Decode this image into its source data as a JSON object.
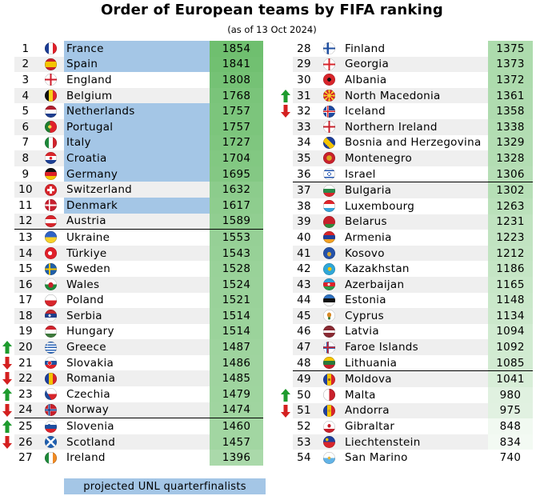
{
  "chart_data": {
    "type": "table",
    "title": "Order of European teams by FIFA ranking",
    "subtitle": "(as of 13 Oct 2024)",
    "legend": "projected UNL quarterfinalists",
    "colors": {
      "qf_highlight": "#a4c6e6",
      "points_max": "#6fbf6f",
      "points_min": "#ffffff",
      "arrow_up": "#1e9b2e",
      "arrow_down": "#d42020"
    },
    "points_scale": [
      740,
      1854
    ],
    "separators_after_rank": [
      12,
      24,
      36,
      48
    ],
    "teams": [
      {
        "rank": 1,
        "team": "France",
        "points": 1854,
        "qf": true,
        "move": "",
        "flag": "france-flag-icon"
      },
      {
        "rank": 2,
        "team": "Spain",
        "points": 1841,
        "qf": true,
        "move": "",
        "flag": "spain-flag-icon"
      },
      {
        "rank": 3,
        "team": "England",
        "points": 1808,
        "qf": false,
        "move": "",
        "flag": "england-flag-icon"
      },
      {
        "rank": 4,
        "team": "Belgium",
        "points": 1768,
        "qf": false,
        "move": "",
        "flag": "belgium-flag-icon"
      },
      {
        "rank": 5,
        "team": "Netherlands",
        "points": 1757,
        "qf": true,
        "move": "",
        "flag": "netherlands-flag-icon"
      },
      {
        "rank": 6,
        "team": "Portugal",
        "points": 1757,
        "qf": true,
        "move": "",
        "flag": "portugal-flag-icon"
      },
      {
        "rank": 7,
        "team": "Italy",
        "points": 1727,
        "qf": true,
        "move": "",
        "flag": "italy-flag-icon"
      },
      {
        "rank": 8,
        "team": "Croatia",
        "points": 1704,
        "qf": true,
        "move": "",
        "flag": "croatia-flag-icon"
      },
      {
        "rank": 9,
        "team": "Germany",
        "points": 1695,
        "qf": true,
        "move": "",
        "flag": "germany-flag-icon"
      },
      {
        "rank": 10,
        "team": "Switzerland",
        "points": 1632,
        "qf": false,
        "move": "",
        "flag": "switzerland-flag-icon"
      },
      {
        "rank": 11,
        "team": "Denmark",
        "points": 1617,
        "qf": true,
        "move": "",
        "flag": "denmark-flag-icon"
      },
      {
        "rank": 12,
        "team": "Austria",
        "points": 1589,
        "qf": false,
        "move": "",
        "flag": "austria-flag-icon"
      },
      {
        "rank": 13,
        "team": "Ukraine",
        "points": 1553,
        "qf": false,
        "move": "",
        "flag": "ukraine-flag-icon"
      },
      {
        "rank": 14,
        "team": "Türkiye",
        "points": 1543,
        "qf": false,
        "move": "",
        "flag": "turkiye-flag-icon"
      },
      {
        "rank": 15,
        "team": "Sweden",
        "points": 1528,
        "qf": false,
        "move": "",
        "flag": "sweden-flag-icon"
      },
      {
        "rank": 16,
        "team": "Wales",
        "points": 1524,
        "qf": false,
        "move": "",
        "flag": "wales-flag-icon"
      },
      {
        "rank": 17,
        "team": "Poland",
        "points": 1521,
        "qf": false,
        "move": "",
        "flag": "poland-flag-icon"
      },
      {
        "rank": 18,
        "team": "Serbia",
        "points": 1514,
        "qf": false,
        "move": "",
        "flag": "serbia-flag-icon"
      },
      {
        "rank": 19,
        "team": "Hungary",
        "points": 1514,
        "qf": false,
        "move": "",
        "flag": "hungary-flag-icon"
      },
      {
        "rank": 20,
        "team": "Greece",
        "points": 1487,
        "qf": false,
        "move": "up",
        "flag": "greece-flag-icon"
      },
      {
        "rank": 21,
        "team": "Slovakia",
        "points": 1486,
        "qf": false,
        "move": "down",
        "flag": "slovakia-flag-icon"
      },
      {
        "rank": 22,
        "team": "Romania",
        "points": 1485,
        "qf": false,
        "move": "down",
        "flag": "romania-flag-icon"
      },
      {
        "rank": 23,
        "team": "Czechia",
        "points": 1479,
        "qf": false,
        "move": "up",
        "flag": "czechia-flag-icon"
      },
      {
        "rank": 24,
        "team": "Norway",
        "points": 1474,
        "qf": false,
        "move": "down",
        "flag": "norway-flag-icon"
      },
      {
        "rank": 25,
        "team": "Slovenia",
        "points": 1460,
        "qf": false,
        "move": "up",
        "flag": "slovenia-flag-icon"
      },
      {
        "rank": 26,
        "team": "Scotland",
        "points": 1457,
        "qf": false,
        "move": "down",
        "flag": "scotland-flag-icon"
      },
      {
        "rank": 27,
        "team": "Ireland",
        "points": 1396,
        "qf": false,
        "move": "",
        "flag": "ireland-flag-icon"
      },
      {
        "rank": 28,
        "team": "Finland",
        "points": 1375,
        "qf": false,
        "move": "",
        "flag": "finland-flag-icon"
      },
      {
        "rank": 29,
        "team": "Georgia",
        "points": 1373,
        "qf": false,
        "move": "",
        "flag": "georgia-flag-icon"
      },
      {
        "rank": 30,
        "team": "Albania",
        "points": 1372,
        "qf": false,
        "move": "",
        "flag": "albania-flag-icon"
      },
      {
        "rank": 31,
        "team": "North Macedonia",
        "points": 1361,
        "qf": false,
        "move": "up",
        "flag": "north-macedonia-flag-icon"
      },
      {
        "rank": 32,
        "team": "Iceland",
        "points": 1358,
        "qf": false,
        "move": "down",
        "flag": "iceland-flag-icon"
      },
      {
        "rank": 33,
        "team": "Northern Ireland",
        "points": 1338,
        "qf": false,
        "move": "",
        "flag": "northern-ireland-flag-icon"
      },
      {
        "rank": 34,
        "team": "Bosnia and Herzegovina",
        "points": 1329,
        "qf": false,
        "move": "",
        "flag": "bosnia-flag-icon"
      },
      {
        "rank": 35,
        "team": "Montenegro",
        "points": 1328,
        "qf": false,
        "move": "",
        "flag": "montenegro-flag-icon"
      },
      {
        "rank": 36,
        "team": "Israel",
        "points": 1306,
        "qf": false,
        "move": "",
        "flag": "israel-flag-icon"
      },
      {
        "rank": 37,
        "team": "Bulgaria",
        "points": 1302,
        "qf": false,
        "move": "",
        "flag": "bulgaria-flag-icon"
      },
      {
        "rank": 38,
        "team": "Luxembourg",
        "points": 1263,
        "qf": false,
        "move": "",
        "flag": "luxembourg-flag-icon"
      },
      {
        "rank": 39,
        "team": "Belarus",
        "points": 1231,
        "qf": false,
        "move": "",
        "flag": "belarus-flag-icon"
      },
      {
        "rank": 40,
        "team": "Armenia",
        "points": 1223,
        "qf": false,
        "move": "",
        "flag": "armenia-flag-icon"
      },
      {
        "rank": 41,
        "team": "Kosovo",
        "points": 1212,
        "qf": false,
        "move": "",
        "flag": "kosovo-flag-icon"
      },
      {
        "rank": 42,
        "team": "Kazakhstan",
        "points": 1186,
        "qf": false,
        "move": "",
        "flag": "kazakhstan-flag-icon"
      },
      {
        "rank": 43,
        "team": "Azerbaijan",
        "points": 1165,
        "qf": false,
        "move": "",
        "flag": "azerbaijan-flag-icon"
      },
      {
        "rank": 44,
        "team": "Estonia",
        "points": 1148,
        "qf": false,
        "move": "",
        "flag": "estonia-flag-icon"
      },
      {
        "rank": 45,
        "team": "Cyprus",
        "points": 1134,
        "qf": false,
        "move": "",
        "flag": "cyprus-flag-icon"
      },
      {
        "rank": 46,
        "team": "Latvia",
        "points": 1094,
        "qf": false,
        "move": "",
        "flag": "latvia-flag-icon"
      },
      {
        "rank": 47,
        "team": "Faroe Islands",
        "points": 1092,
        "qf": false,
        "move": "",
        "flag": "faroe-islands-flag-icon"
      },
      {
        "rank": 48,
        "team": "Lithuania",
        "points": 1085,
        "qf": false,
        "move": "",
        "flag": "lithuania-flag-icon"
      },
      {
        "rank": 49,
        "team": "Moldova",
        "points": 1041,
        "qf": false,
        "move": "",
        "flag": "moldova-flag-icon"
      },
      {
        "rank": 50,
        "team": "Malta",
        "points": 980,
        "qf": false,
        "move": "up",
        "flag": "malta-flag-icon"
      },
      {
        "rank": 51,
        "team": "Andorra",
        "points": 975,
        "qf": false,
        "move": "down",
        "flag": "andorra-flag-icon"
      },
      {
        "rank": 52,
        "team": "Gibraltar",
        "points": 848,
        "qf": false,
        "move": "",
        "flag": "gibraltar-flag-icon"
      },
      {
        "rank": 53,
        "team": "Liechtenstein",
        "points": 834,
        "qf": false,
        "move": "",
        "flag": "liechtenstein-flag-icon"
      },
      {
        "rank": 54,
        "team": "San Marino",
        "points": 740,
        "qf": false,
        "move": "",
        "flag": "san-marino-flag-icon"
      }
    ]
  }
}
